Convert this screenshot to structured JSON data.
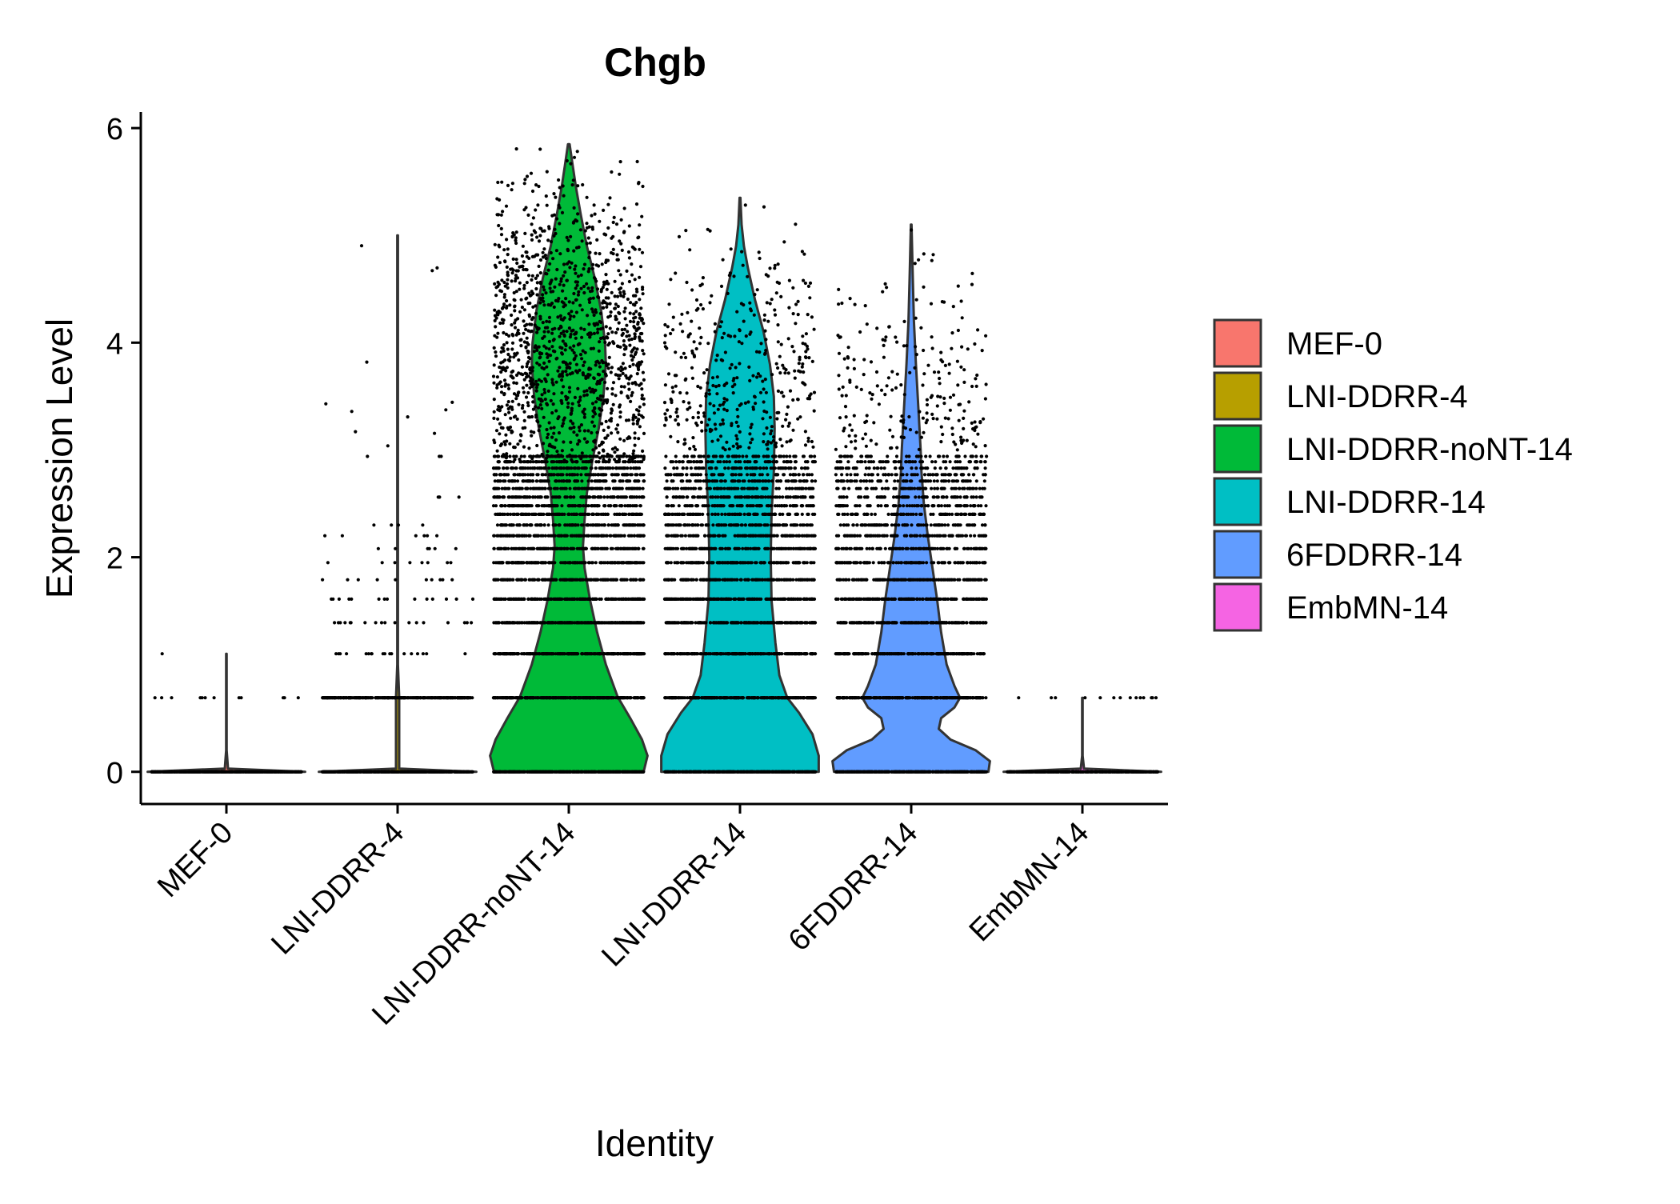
{
  "chart_data": {
    "type": "violin",
    "title": "Chgb",
    "xlabel": "Identity",
    "ylabel": "Expression Level",
    "ylim": [
      -0.3,
      6.15
    ],
    "yticks": [
      0,
      2,
      4,
      6
    ],
    "grid": false,
    "legend_position": "right",
    "categories": [
      "MEF-0",
      "LNI-DDRR-4",
      "LNI-DDRR-noNT-14",
      "LNI-DDRR-14",
      "6FDDRR-14",
      "EmbMN-14"
    ],
    "legend": [
      "MEF-0",
      "LNI-DDRR-4",
      "LNI-DDRR-noNT-14",
      "LNI-DDRR-14",
      "6FDDRR-14",
      "EmbMN-14"
    ],
    "colors": [
      "#F8766D",
      "#B79F00",
      "#00BA38",
      "#00BFC4",
      "#619CFF",
      "#F564E3"
    ],
    "series": [
      {
        "name": "MEF-0",
        "max": 1.1,
        "violin": [
          [
            0,
            1.0
          ],
          [
            0.03,
            0.02
          ],
          [
            0.2,
            0.003
          ],
          [
            1.1,
            0.003
          ]
        ],
        "point_levels": [
          [
            0,
            500
          ],
          [
            0.69,
            12
          ],
          [
            1.1,
            1
          ]
        ]
      },
      {
        "name": "LNI-DDRR-4",
        "max": 5.0,
        "violin": [
          [
            0,
            1.0
          ],
          [
            0.03,
            0.02
          ],
          [
            0.69,
            0.02
          ],
          [
            1.0,
            0.004
          ],
          [
            5.0,
            0.004
          ]
        ],
        "point_levels": [
          [
            0,
            500
          ],
          [
            0.69,
            300
          ],
          [
            1.1,
            18
          ],
          [
            1.39,
            18
          ],
          [
            1.61,
            14
          ],
          [
            1.79,
            10
          ],
          [
            1.95,
            8
          ],
          [
            2.08,
            6
          ],
          [
            2.2,
            6
          ],
          [
            2.3,
            4
          ],
          [
            2.56,
            3
          ],
          [
            2.94,
            3
          ],
          [
            3.09,
            3
          ],
          [
            3.26,
            2
          ],
          [
            3.4,
            2
          ],
          [
            3.53,
            1
          ],
          [
            3.73,
            1
          ],
          [
            4.7,
            2
          ],
          [
            5.0,
            1
          ]
        ]
      },
      {
        "name": "LNI-DDRR-noNT-14",
        "max": 5.85,
        "violin": [
          [
            0,
            0.95
          ],
          [
            0.15,
            1.0
          ],
          [
            0.3,
            0.93
          ],
          [
            0.5,
            0.78
          ],
          [
            0.7,
            0.62
          ],
          [
            1.0,
            0.47
          ],
          [
            1.3,
            0.36
          ],
          [
            1.6,
            0.27
          ],
          [
            1.9,
            0.2
          ],
          [
            2.1,
            0.18
          ],
          [
            2.35,
            0.2
          ],
          [
            2.6,
            0.23
          ],
          [
            2.9,
            0.3
          ],
          [
            3.2,
            0.38
          ],
          [
            3.5,
            0.44
          ],
          [
            3.8,
            0.47
          ],
          [
            4.0,
            0.46
          ],
          [
            4.3,
            0.41
          ],
          [
            4.6,
            0.33
          ],
          [
            4.9,
            0.23
          ],
          [
            5.2,
            0.15
          ],
          [
            5.45,
            0.09
          ],
          [
            5.65,
            0.05
          ],
          [
            5.85,
            0.01
          ]
        ],
        "point_levels": [
          [
            0,
            450
          ],
          [
            0.69,
            300
          ],
          [
            1.1,
            250
          ],
          [
            1.39,
            220
          ],
          [
            1.61,
            200
          ],
          [
            1.79,
            180
          ],
          [
            1.95,
            160
          ],
          [
            2.08,
            150
          ],
          [
            2.2,
            140
          ],
          [
            2.3,
            130
          ],
          [
            2.4,
            125
          ],
          [
            2.48,
            120
          ],
          [
            2.56,
            115
          ],
          [
            2.64,
            110
          ],
          [
            2.71,
            105
          ],
          [
            2.77,
            100
          ],
          [
            2.83,
            100
          ],
          [
            2.89,
            95
          ],
          [
            2.94,
            90
          ],
          [
            3.0,
            90
          ],
          [
            3.2,
            90
          ],
          [
            3.4,
            120
          ],
          [
            3.6,
            130
          ],
          [
            3.8,
            140
          ],
          [
            4.0,
            140
          ],
          [
            4.2,
            130
          ],
          [
            4.4,
            120
          ],
          [
            4.6,
            100
          ],
          [
            4.8,
            80
          ],
          [
            5.0,
            60
          ],
          [
            5.2,
            40
          ],
          [
            5.4,
            25
          ],
          [
            5.6,
            12
          ],
          [
            5.8,
            4
          ]
        ]
      },
      {
        "name": "LNI-DDRR-14",
        "max": 5.35,
        "violin": [
          [
            0,
            1.0
          ],
          [
            0.15,
            1.0
          ],
          [
            0.35,
            0.92
          ],
          [
            0.55,
            0.75
          ],
          [
            0.69,
            0.6
          ],
          [
            0.9,
            0.5
          ],
          [
            1.2,
            0.45
          ],
          [
            1.6,
            0.4
          ],
          [
            2.0,
            0.39
          ],
          [
            2.4,
            0.4
          ],
          [
            2.8,
            0.43
          ],
          [
            3.2,
            0.44
          ],
          [
            3.5,
            0.43
          ],
          [
            3.8,
            0.38
          ],
          [
            4.1,
            0.3
          ],
          [
            4.4,
            0.19
          ],
          [
            4.7,
            0.1
          ],
          [
            4.9,
            0.05
          ],
          [
            5.1,
            0.02
          ],
          [
            5.35,
            0.005
          ]
        ],
        "point_levels": [
          [
            0,
            450
          ],
          [
            0.69,
            280
          ],
          [
            1.1,
            220
          ],
          [
            1.39,
            200
          ],
          [
            1.61,
            180
          ],
          [
            1.79,
            160
          ],
          [
            1.95,
            140
          ],
          [
            2.08,
            130
          ],
          [
            2.2,
            120
          ],
          [
            2.3,
            110
          ],
          [
            2.4,
            100
          ],
          [
            2.48,
            95
          ],
          [
            2.56,
            90
          ],
          [
            2.64,
            85
          ],
          [
            2.71,
            80
          ],
          [
            2.77,
            75
          ],
          [
            2.83,
            70
          ],
          [
            2.89,
            65
          ],
          [
            2.94,
            60
          ],
          [
            3.1,
            60
          ],
          [
            3.3,
            60
          ],
          [
            3.5,
            55
          ],
          [
            3.7,
            50
          ],
          [
            3.9,
            45
          ],
          [
            4.1,
            40
          ],
          [
            4.3,
            30
          ],
          [
            4.5,
            22
          ],
          [
            4.7,
            15
          ],
          [
            4.9,
            8
          ],
          [
            5.1,
            4
          ],
          [
            5.3,
            2
          ]
        ]
      },
      {
        "name": "6FDDRR-14",
        "max": 5.1,
        "violin": [
          [
            0,
            0.98
          ],
          [
            0.1,
            1.0
          ],
          [
            0.2,
            0.82
          ],
          [
            0.3,
            0.5
          ],
          [
            0.4,
            0.35
          ],
          [
            0.5,
            0.38
          ],
          [
            0.6,
            0.55
          ],
          [
            0.69,
            0.62
          ],
          [
            0.8,
            0.55
          ],
          [
            1.0,
            0.45
          ],
          [
            1.3,
            0.38
          ],
          [
            1.6,
            0.33
          ],
          [
            1.9,
            0.27
          ],
          [
            2.2,
            0.21
          ],
          [
            2.5,
            0.16
          ],
          [
            2.8,
            0.13
          ],
          [
            3.0,
            0.12
          ],
          [
            3.4,
            0.09
          ],
          [
            3.8,
            0.06
          ],
          [
            4.2,
            0.035
          ],
          [
            4.6,
            0.02
          ],
          [
            5.1,
            0.004
          ]
        ],
        "point_levels": [
          [
            0,
            450
          ],
          [
            0.69,
            300
          ],
          [
            1.1,
            220
          ],
          [
            1.39,
            190
          ],
          [
            1.61,
            160
          ],
          [
            1.79,
            140
          ],
          [
            1.95,
            120
          ],
          [
            2.08,
            110
          ],
          [
            2.2,
            100
          ],
          [
            2.3,
            90
          ],
          [
            2.4,
            85
          ],
          [
            2.48,
            80
          ],
          [
            2.56,
            75
          ],
          [
            2.64,
            70
          ],
          [
            2.71,
            65
          ],
          [
            2.77,
            60
          ],
          [
            2.83,
            55
          ],
          [
            2.89,
            50
          ],
          [
            2.94,
            45
          ],
          [
            3.1,
            45
          ],
          [
            3.3,
            40
          ],
          [
            3.5,
            35
          ],
          [
            3.7,
            30
          ],
          [
            3.9,
            25
          ],
          [
            4.1,
            20
          ],
          [
            4.3,
            12
          ],
          [
            4.5,
            8
          ],
          [
            4.7,
            4
          ],
          [
            4.9,
            2
          ],
          [
            5.1,
            1
          ]
        ]
      },
      {
        "name": "EmbMN-14",
        "max": 0.69,
        "violin": [
          [
            0,
            1.0
          ],
          [
            0.03,
            0.02
          ],
          [
            0.15,
            0.003
          ],
          [
            0.69,
            0.003
          ]
        ],
        "point_levels": [
          [
            0,
            400
          ],
          [
            0.69,
            14
          ]
        ]
      }
    ]
  }
}
